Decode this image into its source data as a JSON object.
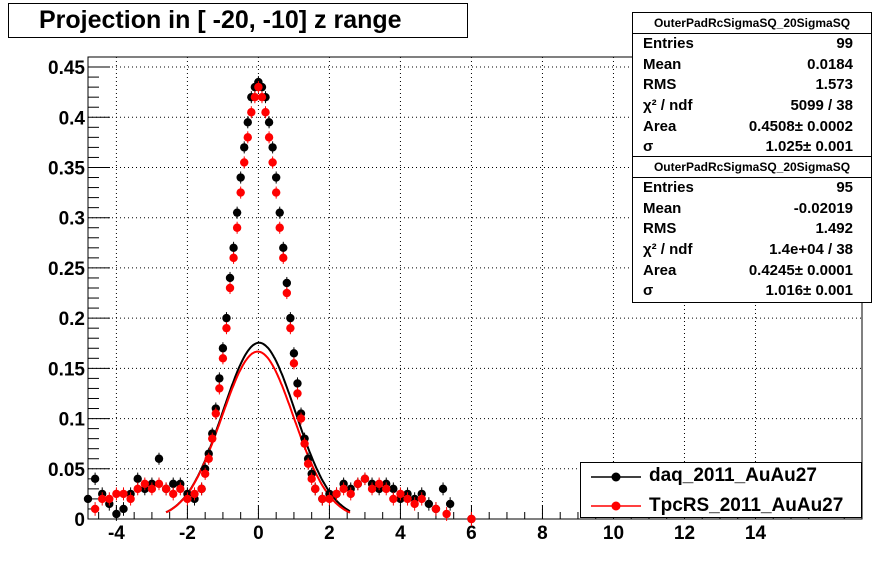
{
  "title": "Projection in [ -20, -10] z range",
  "stats_boxes": [
    {
      "name": "OuterPadRcSigmaSQ_20SigmaSQ",
      "rows": [
        {
          "label": "Entries",
          "value": "99"
        },
        {
          "label": "Mean",
          "value": "0.0184"
        },
        {
          "label": "RMS",
          "value": "1.573"
        },
        {
          "label": "χ² / ndf",
          "value": "5099 / 38"
        },
        {
          "label": "Area",
          "value": "0.4508± 0.0002"
        },
        {
          "label": "σ",
          "value": "1.025± 0.001"
        }
      ]
    },
    {
      "name": "OuterPadRcSigmaSQ_20SigmaSQ",
      "rows": [
        {
          "label": "Entries",
          "value": "95"
        },
        {
          "label": "Mean",
          "value": "-0.02019"
        },
        {
          "label": "RMS",
          "value": "1.492"
        },
        {
          "label": "χ² / ndf",
          "value": "1.4e+04 / 38"
        },
        {
          "label": "Area",
          "value": "0.4245± 0.0001"
        },
        {
          "label": "σ",
          "value": "1.016± 0.001"
        }
      ]
    }
  ],
  "legend": {
    "entries": [
      {
        "label": "daq_2011_AuAu27",
        "color": "#000000"
      },
      {
        "label": "TpcRS_2011_AuAu27",
        "color": "#ff0000"
      }
    ]
  },
  "chart_data": {
    "type": "scatter",
    "title": "Projection in [ -20, -10] z range",
    "xlim": [
      -4.8,
      17
    ],
    "ylim": [
      0,
      0.46
    ],
    "x_ticks": [
      -4,
      -2,
      0,
      2,
      4,
      6,
      8,
      10,
      12,
      14
    ],
    "x_tick_labels": [
      "-4",
      "-2",
      "0",
      "2",
      "4",
      "6",
      "8",
      "10",
      "12",
      "14"
    ],
    "y_ticks": [
      0,
      0.05,
      0.1,
      0.15,
      0.2,
      0.25,
      0.3,
      0.35,
      0.4,
      0.45
    ],
    "y_tick_labels": [
      "0",
      "0.05",
      "0.1",
      "0.15",
      "0.2",
      "0.25",
      "0.3",
      "0.35",
      "0.4",
      "0.45"
    ],
    "grid": true,
    "legend_position": "bottom-right",
    "series": [
      {
        "name": "daq_2011_AuAu27",
        "color": "#000000",
        "fit": {
          "function": "gauss",
          "area": 0.4508,
          "mean": 0.0184,
          "sigma": 1.025
        },
        "points": [
          [
            -4.8,
            0.02
          ],
          [
            -4.6,
            0.04
          ],
          [
            -4.4,
            0.025
          ],
          [
            -4.2,
            0.015
          ],
          [
            -4.0,
            0.005
          ],
          [
            -3.8,
            0.01
          ],
          [
            -3.6,
            0.025
          ],
          [
            -3.4,
            0.04
          ],
          [
            -3.2,
            0.03
          ],
          [
            -3.0,
            0.035
          ],
          [
            -2.8,
            0.06
          ],
          [
            -2.6,
            0.03
          ],
          [
            -2.4,
            0.035
          ],
          [
            -2.2,
            0.035
          ],
          [
            -2.0,
            0.025
          ],
          [
            -1.8,
            0.02
          ],
          [
            -1.6,
            0.03
          ],
          [
            -1.5,
            0.05
          ],
          [
            -1.4,
            0.065
          ],
          [
            -1.3,
            0.085
          ],
          [
            -1.2,
            0.11
          ],
          [
            -1.1,
            0.14
          ],
          [
            -1.0,
            0.17
          ],
          [
            -0.9,
            0.2
          ],
          [
            -0.8,
            0.24
          ],
          [
            -0.7,
            0.27
          ],
          [
            -0.6,
            0.305
          ],
          [
            -0.5,
            0.34
          ],
          [
            -0.4,
            0.37
          ],
          [
            -0.3,
            0.395
          ],
          [
            -0.2,
            0.42
          ],
          [
            -0.1,
            0.43
          ],
          [
            0.0,
            0.435
          ],
          [
            0.1,
            0.43
          ],
          [
            0.2,
            0.42
          ],
          [
            0.3,
            0.395
          ],
          [
            0.4,
            0.37
          ],
          [
            0.5,
            0.34
          ],
          [
            0.6,
            0.305
          ],
          [
            0.7,
            0.27
          ],
          [
            0.8,
            0.235
          ],
          [
            0.9,
            0.2
          ],
          [
            1.0,
            0.165
          ],
          [
            1.1,
            0.135
          ],
          [
            1.2,
            0.105
          ],
          [
            1.3,
            0.08
          ],
          [
            1.4,
            0.06
          ],
          [
            1.5,
            0.045
          ],
          [
            1.6,
            0.03
          ],
          [
            1.8,
            0.02
          ],
          [
            2.0,
            0.025
          ],
          [
            2.2,
            0.025
          ],
          [
            2.4,
            0.035
          ],
          [
            2.6,
            0.03
          ],
          [
            2.8,
            0.035
          ],
          [
            3.0,
            0.04
          ],
          [
            3.2,
            0.035
          ],
          [
            3.4,
            0.03
          ],
          [
            3.6,
            0.035
          ],
          [
            3.8,
            0.03
          ],
          [
            4.0,
            0.02
          ],
          [
            4.2,
            0.025
          ],
          [
            4.4,
            0.02
          ],
          [
            4.6,
            0.025
          ],
          [
            4.8,
            0.015
          ],
          [
            5.0,
            0.01
          ],
          [
            5.2,
            0.03
          ],
          [
            5.4,
            0.015
          ],
          [
            6.0,
            0.0
          ]
        ]
      },
      {
        "name": "TpcRS_2011_AuAu27",
        "color": "#ff0000",
        "fit": {
          "function": "gauss",
          "area": 0.4245,
          "mean": -0.02019,
          "sigma": 1.016
        },
        "points": [
          [
            -4.6,
            0.01
          ],
          [
            -4.4,
            0.02
          ],
          [
            -4.2,
            0.02
          ],
          [
            -4.0,
            0.025
          ],
          [
            -3.8,
            0.025
          ],
          [
            -3.6,
            0.02
          ],
          [
            -3.4,
            0.03
          ],
          [
            -3.2,
            0.035
          ],
          [
            -3.0,
            0.03
          ],
          [
            -2.8,
            0.035
          ],
          [
            -2.6,
            0.03
          ],
          [
            -2.4,
            0.025
          ],
          [
            -2.2,
            0.03
          ],
          [
            -2.0,
            0.02
          ],
          [
            -1.8,
            0.025
          ],
          [
            -1.6,
            0.03
          ],
          [
            -1.5,
            0.045
          ],
          [
            -1.4,
            0.06
          ],
          [
            -1.3,
            0.08
          ],
          [
            -1.2,
            0.105
          ],
          [
            -1.1,
            0.13
          ],
          [
            -1.0,
            0.16
          ],
          [
            -0.9,
            0.19
          ],
          [
            -0.8,
            0.23
          ],
          [
            -0.7,
            0.26
          ],
          [
            -0.6,
            0.29
          ],
          [
            -0.5,
            0.325
          ],
          [
            -0.4,
            0.355
          ],
          [
            -0.3,
            0.38
          ],
          [
            -0.2,
            0.405
          ],
          [
            -0.1,
            0.42
          ],
          [
            0.0,
            0.43
          ],
          [
            0.1,
            0.42
          ],
          [
            0.2,
            0.405
          ],
          [
            0.3,
            0.38
          ],
          [
            0.4,
            0.355
          ],
          [
            0.5,
            0.325
          ],
          [
            0.6,
            0.29
          ],
          [
            0.7,
            0.26
          ],
          [
            0.8,
            0.225
          ],
          [
            0.9,
            0.19
          ],
          [
            1.0,
            0.155
          ],
          [
            1.1,
            0.125
          ],
          [
            1.2,
            0.1
          ],
          [
            1.3,
            0.075
          ],
          [
            1.4,
            0.055
          ],
          [
            1.5,
            0.04
          ],
          [
            1.6,
            0.03
          ],
          [
            1.8,
            0.02
          ],
          [
            2.0,
            0.02
          ],
          [
            2.2,
            0.025
          ],
          [
            2.4,
            0.03
          ],
          [
            2.6,
            0.025
          ],
          [
            2.8,
            0.035
          ],
          [
            3.0,
            0.04
          ],
          [
            3.2,
            0.03
          ],
          [
            3.4,
            0.035
          ],
          [
            3.6,
            0.03
          ],
          [
            3.8,
            0.02
          ],
          [
            4.0,
            0.025
          ],
          [
            4.2,
            0.02
          ],
          [
            4.4,
            0.015
          ],
          [
            4.6,
            0.02
          ],
          [
            5.0,
            0.01
          ],
          [
            5.3,
            0.005
          ],
          [
            6.0,
            0.0
          ]
        ]
      }
    ]
  }
}
